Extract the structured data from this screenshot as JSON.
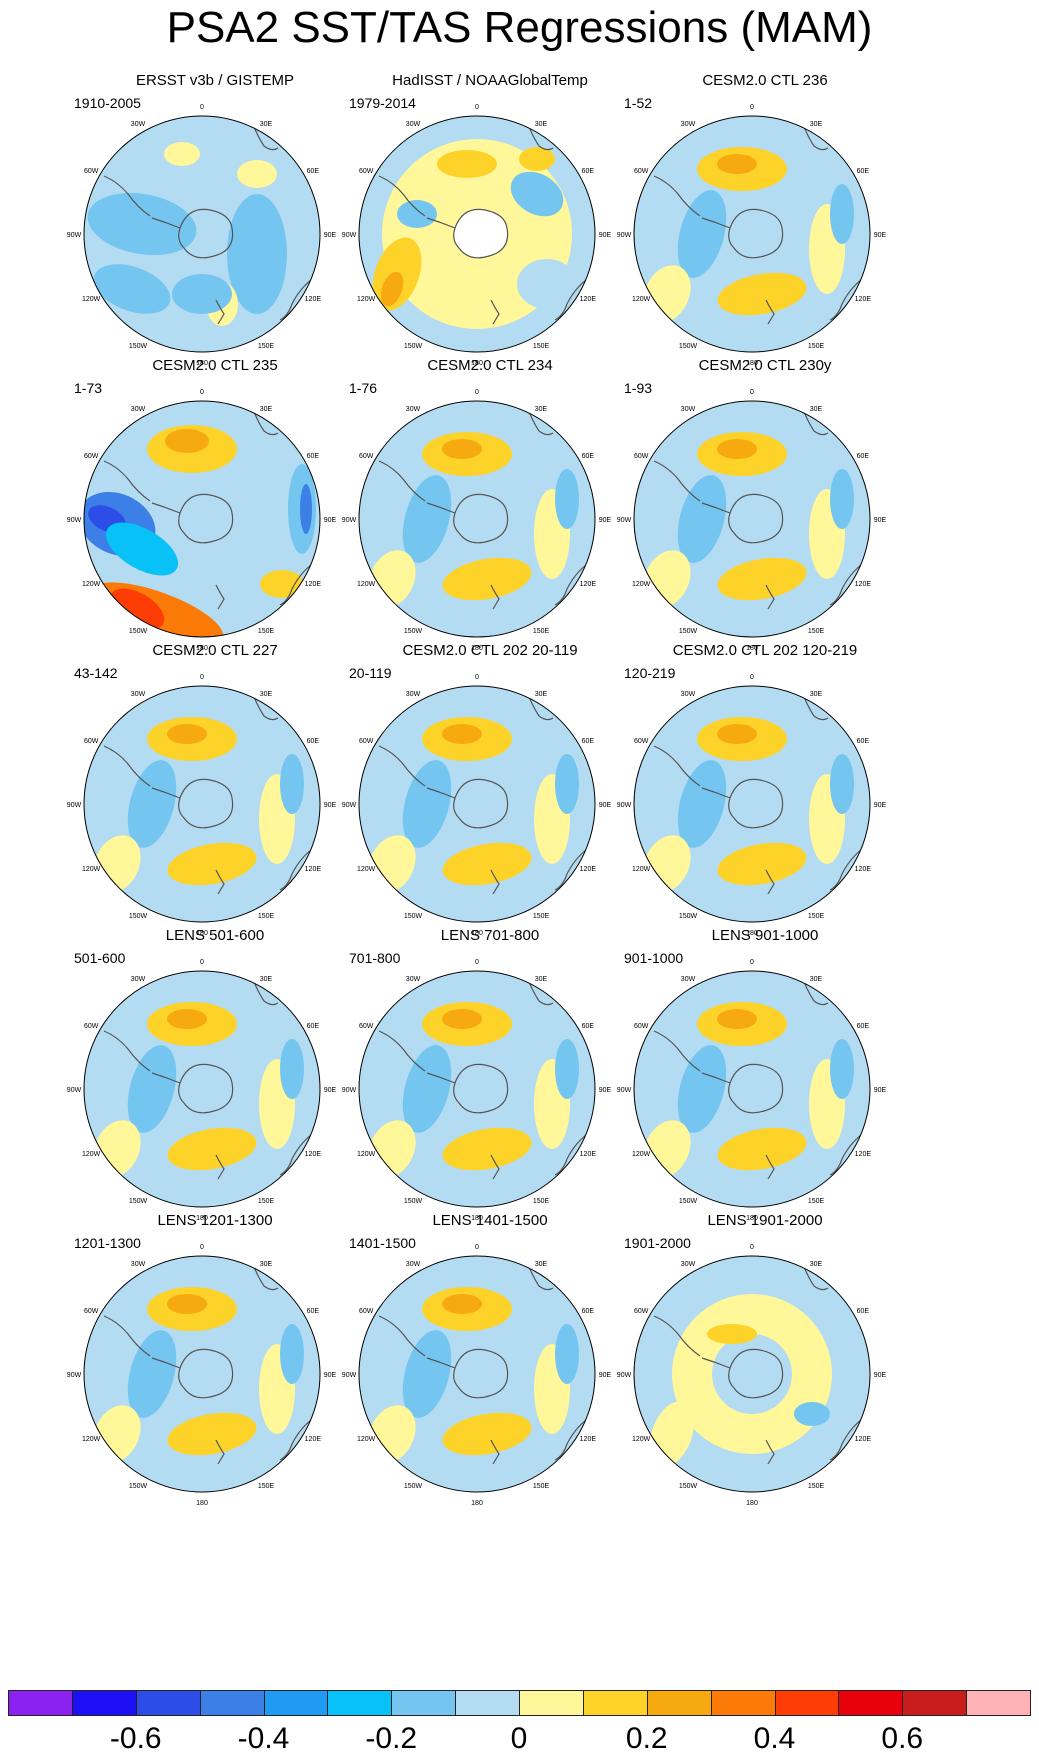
{
  "title": "PSA2 SST/TAS Regressions (MAM)",
  "lon_labels": {
    "deg0": "0",
    "deg30e": "30E",
    "deg60e": "60E",
    "deg90e": "90E",
    "deg120e": "120E",
    "deg150e": "150E",
    "deg180": "180",
    "deg150w": "150W",
    "deg120w": "120W",
    "deg90w": "90W",
    "deg60w": "60W",
    "deg30w": "30W"
  },
  "panels": [
    {
      "title": "ERSST v3b / GISTEMP",
      "period": "1910-2005",
      "style": "obs1"
    },
    {
      "title": "HadISST / NOAAGlobalTemp",
      "period": "1979-2014",
      "style": "obs2"
    },
    {
      "title": "CESM2.0 CTL 236",
      "period": "1-52",
      "style": "model"
    },
    {
      "title": "CESM2.0 CTL 235",
      "period": "1-73",
      "style": "strong"
    },
    {
      "title": "CESM2.0 CTL 234",
      "period": "1-76",
      "style": "model"
    },
    {
      "title": "CESM2.0 CTL 230y",
      "period": "1-93",
      "style": "model"
    },
    {
      "title": "CESM2.0 CTL 227",
      "period": "43-142",
      "style": "model"
    },
    {
      "title": "CESM2.0 CTL 202 20-119",
      "period": "20-119",
      "style": "model"
    },
    {
      "title": "CESM2.0 CTL 202 120-219",
      "period": "120-219",
      "style": "model"
    },
    {
      "title": "LENS 501-600",
      "period": "501-600",
      "style": "model"
    },
    {
      "title": "LENS 701-800",
      "period": "701-800",
      "style": "model"
    },
    {
      "title": "LENS 901-1000",
      "period": "901-1000",
      "style": "model"
    },
    {
      "title": "LENS 1201-1300",
      "period": "1201-1300",
      "style": "model"
    },
    {
      "title": "LENS 1401-1500",
      "period": "1401-1500",
      "style": "model"
    },
    {
      "title": "LENS 1901-2000",
      "period": "1901-2000",
      "style": "weak"
    }
  ],
  "colorbar": {
    "colors": [
      "#8a22f0",
      "#1e10f5",
      "#2d4de8",
      "#3c7fe6",
      "#1f9bf4",
      "#08c1f7",
      "#74c6f1",
      "#b3dcf2",
      "#fff79a",
      "#fdd32a",
      "#f7aa10",
      "#fb7a08",
      "#fd3d05",
      "#e8000b",
      "#c71d1d",
      "#feb2b6"
    ],
    "tick_labels": [
      "-0.6",
      "-0.4",
      "-0.2",
      "0",
      "0.2",
      "0.4",
      "0.6"
    ]
  }
}
